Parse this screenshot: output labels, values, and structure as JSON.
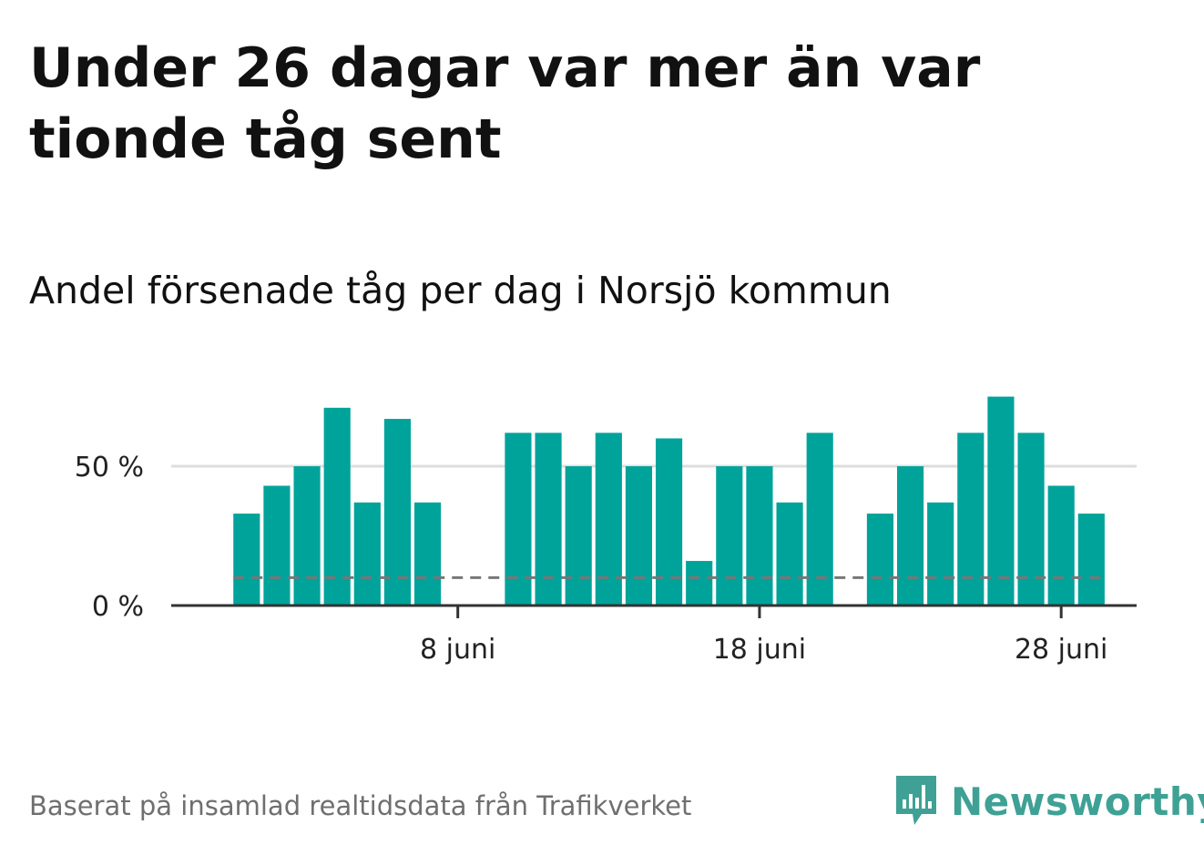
{
  "title": "Under 26 dagar var mer än var tionde tåg sent",
  "subtitle": "Andel försenade tåg per dag i Norsjö kommun",
  "source": "Baserat på insamlad realtidsdata från Trafikverket",
  "brand": {
    "name": "Newsworthy",
    "color": "#3fa195"
  },
  "colors": {
    "bar": "#00a39a",
    "grid": "#dddddd",
    "axis": "#333333",
    "reference": "#777777"
  },
  "chart_data": {
    "type": "bar",
    "title": "Andel försenade tåg per dag i Norsjö kommun",
    "xlabel": "",
    "ylabel": "",
    "x": [
      1,
      2,
      3,
      4,
      5,
      6,
      7,
      8,
      9,
      10,
      11,
      12,
      13,
      14,
      15,
      16,
      17,
      18,
      19,
      20,
      21,
      22,
      23,
      24,
      25,
      26,
      27,
      28,
      29
    ],
    "values": [
      33,
      43,
      50,
      71,
      37,
      67,
      37,
      0,
      0,
      62,
      62,
      50,
      62,
      50,
      60,
      16,
      50,
      50,
      37,
      62,
      0,
      33,
      50,
      37,
      62,
      75,
      62,
      43,
      33
    ],
    "ylim": [
      0,
      85
    ],
    "xlim": [
      -1.5,
      30.5
    ],
    "yticks": [
      {
        "value": 0,
        "label": "0 %"
      },
      {
        "value": 50,
        "label": "50 %"
      }
    ],
    "xticks": [
      {
        "value": 8,
        "label": "8 juni"
      },
      {
        "value": 18,
        "label": "18 juni"
      },
      {
        "value": 28,
        "label": "28 juni"
      }
    ],
    "reference_line": {
      "value": 10,
      "style": "dashed"
    }
  }
}
